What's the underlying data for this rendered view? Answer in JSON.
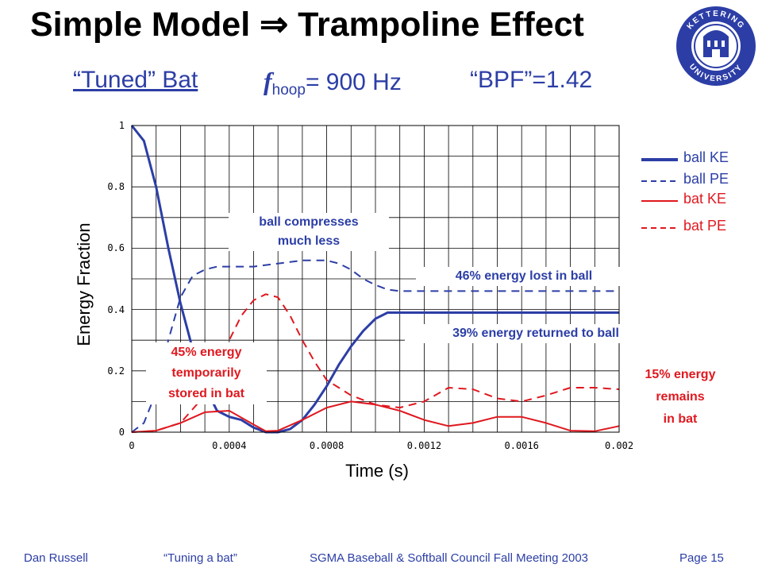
{
  "header": {
    "title": "Simple Model ⇒ Trampoline Effect",
    "tuned": "“Tuned” Bat",
    "f_symbol": "f",
    "f_subscript": "hoop",
    "f_value": "= 900 Hz",
    "bpf": "“BPF”=1.42"
  },
  "logo": {
    "text": "KETTERING UNIVERSITY",
    "icon": "university-seal-icon",
    "color": "#2c3ea6"
  },
  "colors": {
    "blue": "#2c3ea6",
    "red": "#e0181f"
  },
  "chart_data": {
    "type": "line",
    "xlabel": "Time (s)",
    "ylabel": "Energy Fraction",
    "xlim": [
      0,
      0.002
    ],
    "ylim": [
      0,
      1
    ],
    "x_ticks": [
      "0",
      "0.0004",
      "0.0008",
      "0.0012",
      "0.0016",
      "0.002"
    ],
    "y_ticks": [
      "0",
      "0.2",
      "0.4",
      "0.6",
      "0.8",
      "1"
    ],
    "grid": true,
    "legend_position": "right",
    "series": [
      {
        "name": "ball KE",
        "color": "#2c3ea6",
        "style": "solid",
        "width": 3,
        "x": [
          0,
          5e-05,
          0.0001,
          0.00015,
          0.0002,
          0.00025,
          0.0003,
          0.00035,
          0.0004,
          0.00045,
          0.0005,
          0.00055,
          0.0006,
          0.00065,
          0.0007,
          0.00075,
          0.0008,
          0.00085,
          0.0009,
          0.00095,
          0.001,
          0.00105,
          0.0011,
          0.0012,
          0.0014,
          0.0016,
          0.0018,
          0.002
        ],
        "y": [
          1.0,
          0.95,
          0.8,
          0.6,
          0.42,
          0.27,
          0.15,
          0.07,
          0.05,
          0.04,
          0.015,
          0.0,
          0.0,
          0.01,
          0.04,
          0.09,
          0.15,
          0.22,
          0.28,
          0.33,
          0.37,
          0.39,
          0.39,
          0.39,
          0.39,
          0.39,
          0.39,
          0.39
        ]
      },
      {
        "name": "ball PE",
        "color": "#2c3ea6",
        "style": "dashed",
        "width": 2,
        "x": [
          0,
          5e-05,
          0.0001,
          0.00015,
          0.0002,
          0.00025,
          0.0003,
          0.00035,
          0.0004,
          0.0005,
          0.0006,
          0.0007,
          0.00075,
          0.0008,
          0.00085,
          0.0009,
          0.00095,
          0.001,
          0.00105,
          0.0011,
          0.0012,
          0.0014,
          0.0016,
          0.0018,
          0.002
        ],
        "y": [
          0.0,
          0.03,
          0.13,
          0.3,
          0.44,
          0.51,
          0.53,
          0.54,
          0.54,
          0.54,
          0.55,
          0.56,
          0.56,
          0.56,
          0.55,
          0.53,
          0.5,
          0.48,
          0.465,
          0.46,
          0.46,
          0.46,
          0.46,
          0.46,
          0.46
        ]
      },
      {
        "name": "bat KE",
        "color": "#e0181f",
        "style": "solid",
        "width": 2,
        "x": [
          0,
          0.0001,
          0.0002,
          0.0003,
          0.0004,
          0.0005,
          0.00055,
          0.0006,
          0.0007,
          0.0008,
          0.0009,
          0.001,
          0.0011,
          0.0012,
          0.0013,
          0.0014,
          0.0015,
          0.0016,
          0.0017,
          0.0018,
          0.0019,
          0.002
        ],
        "y": [
          0.0,
          0.005,
          0.03,
          0.065,
          0.07,
          0.025,
          0.003,
          0.005,
          0.04,
          0.08,
          0.1,
          0.09,
          0.07,
          0.04,
          0.02,
          0.03,
          0.05,
          0.05,
          0.03,
          0.005,
          0.003,
          0.02
        ]
      },
      {
        "name": "bat PE",
        "color": "#e0181f",
        "style": "dashed",
        "width": 2,
        "x": [
          0,
          0.0001,
          0.0002,
          0.0003,
          0.0004,
          0.00045,
          0.0005,
          0.00055,
          0.0006,
          0.00065,
          0.0007,
          0.00075,
          0.0008,
          0.0009,
          0.001,
          0.0011,
          0.0012,
          0.0013,
          0.0014,
          0.0015,
          0.0016,
          0.0017,
          0.0018,
          0.0019,
          0.002
        ],
        "y": [
          0.0,
          0.005,
          0.03,
          0.12,
          0.3,
          0.38,
          0.43,
          0.45,
          0.44,
          0.38,
          0.3,
          0.23,
          0.17,
          0.12,
          0.09,
          0.08,
          0.1,
          0.145,
          0.14,
          0.11,
          0.1,
          0.12,
          0.145,
          0.145,
          0.14
        ]
      }
    ],
    "annotations": [
      {
        "id": "compress",
        "lines": [
          "ball compresses",
          "much less"
        ],
        "color": "#2c3ea6"
      },
      {
        "id": "lost",
        "lines": [
          "46% energy lost in ball"
        ],
        "color": "#2c3ea6"
      },
      {
        "id": "returned",
        "lines": [
          "39% energy returned to ball"
        ],
        "color": "#2c3ea6"
      },
      {
        "id": "stored",
        "lines": [
          "45% energy",
          "temporarily",
          "stored in bat"
        ],
        "color": "#e0181f"
      },
      {
        "id": "remains",
        "lines": [
          "15% energy",
          "remains",
          "in bat"
        ],
        "color": "#e0181f"
      }
    ]
  },
  "footer": {
    "author": "Dan Russell",
    "talk": "“Tuning a bat”",
    "venue": "SGMA Baseball & Softball Council Fall Meeting 2003",
    "page": "Page 15"
  }
}
